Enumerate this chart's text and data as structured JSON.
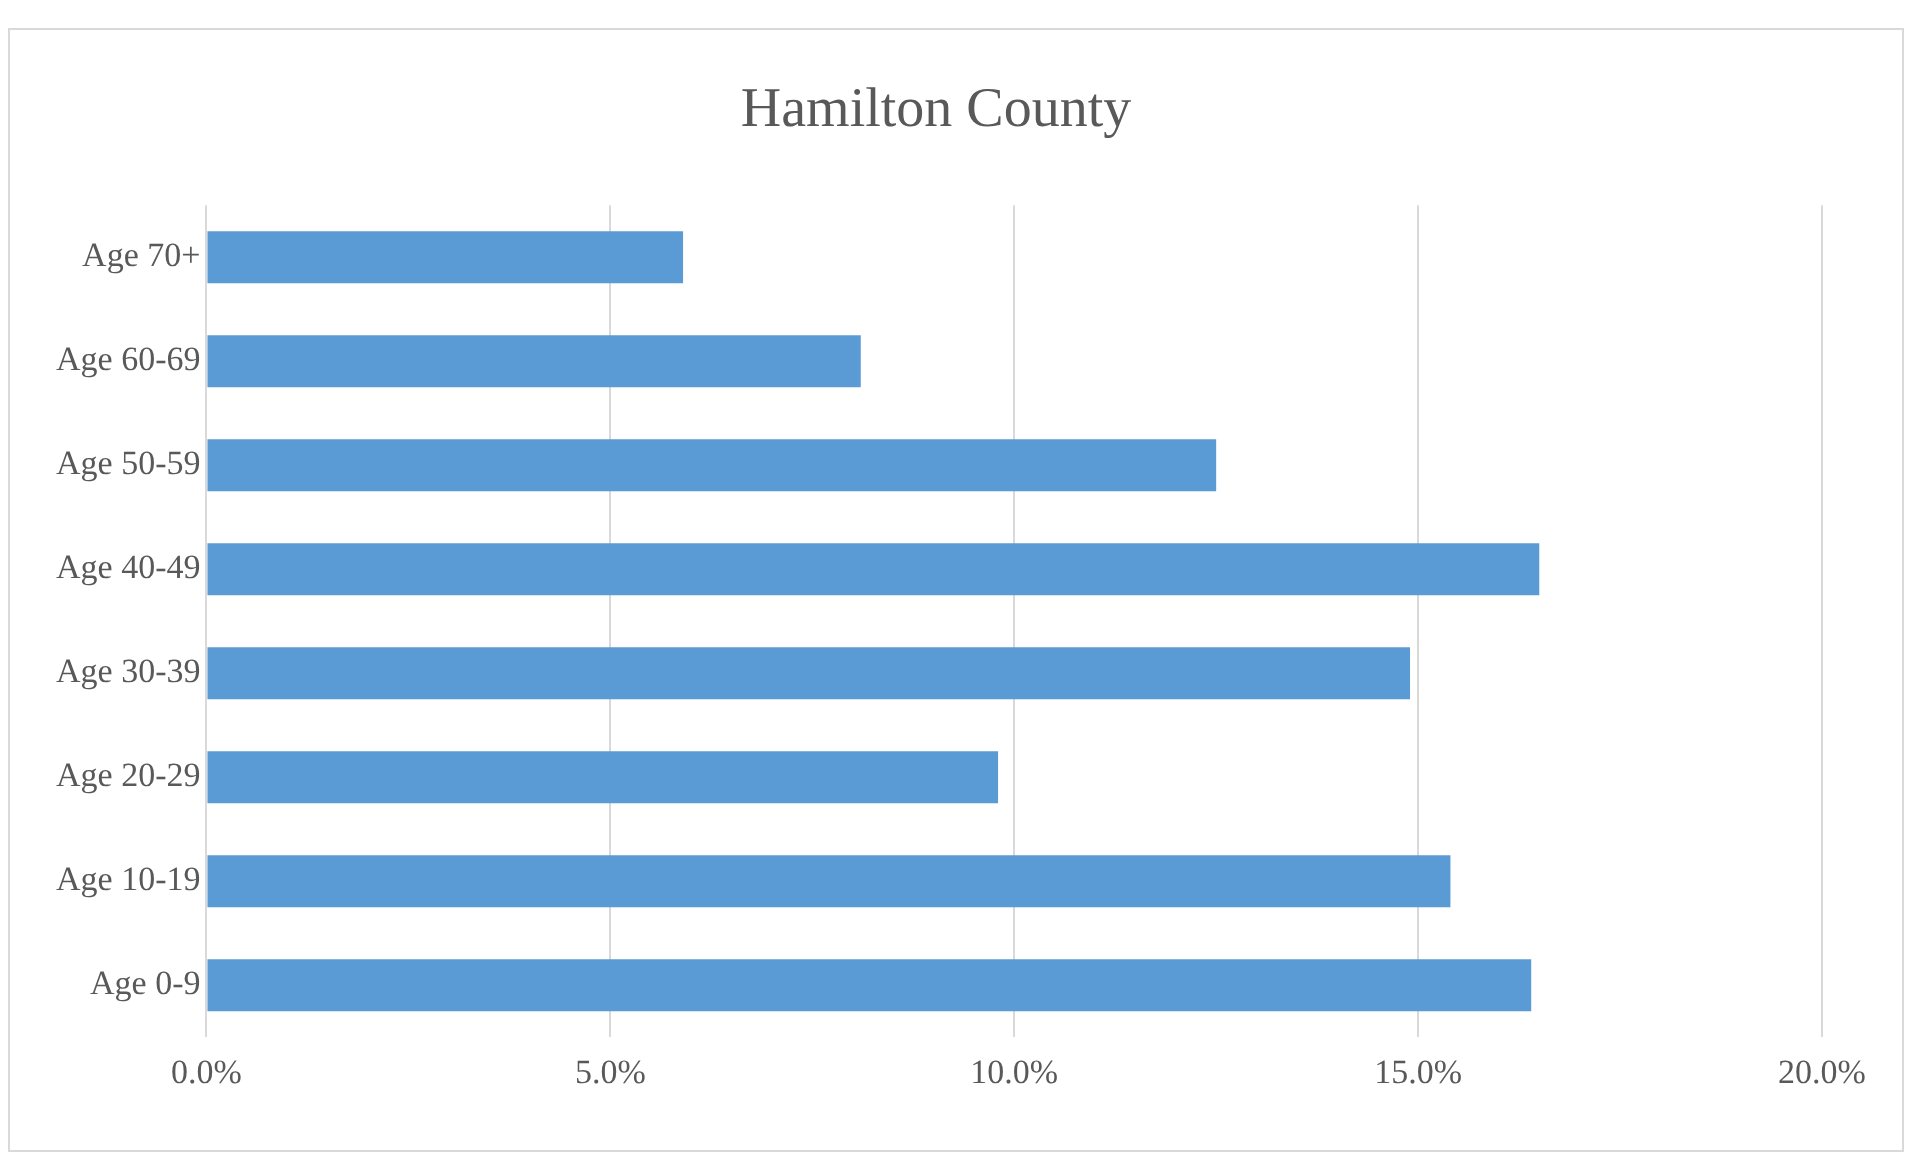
{
  "chart_data": {
    "type": "bar",
    "orientation": "horizontal",
    "title": "Hamilton County",
    "categories": [
      "Age 70+",
      "Age 60-69",
      "Age 50-59",
      "Age 40-49",
      "Age 30-39",
      "Age 20-29",
      "Age 10-19",
      "Age 0-9"
    ],
    "values": [
      5.9,
      8.1,
      12.5,
      16.5,
      14.9,
      9.8,
      15.4,
      16.4
    ],
    "color": "#5b9bd5",
    "xlim": [
      0,
      20
    ],
    "xticks": [
      {
        "value": 0,
        "label": "0.0%"
      },
      {
        "value": 5,
        "label": "5.0%"
      },
      {
        "value": 10,
        "label": "10.0%"
      },
      {
        "value": 15,
        "label": "15.0%"
      },
      {
        "value": 20,
        "label": "20.0%"
      }
    ],
    "grid": "x",
    "legend": false
  }
}
